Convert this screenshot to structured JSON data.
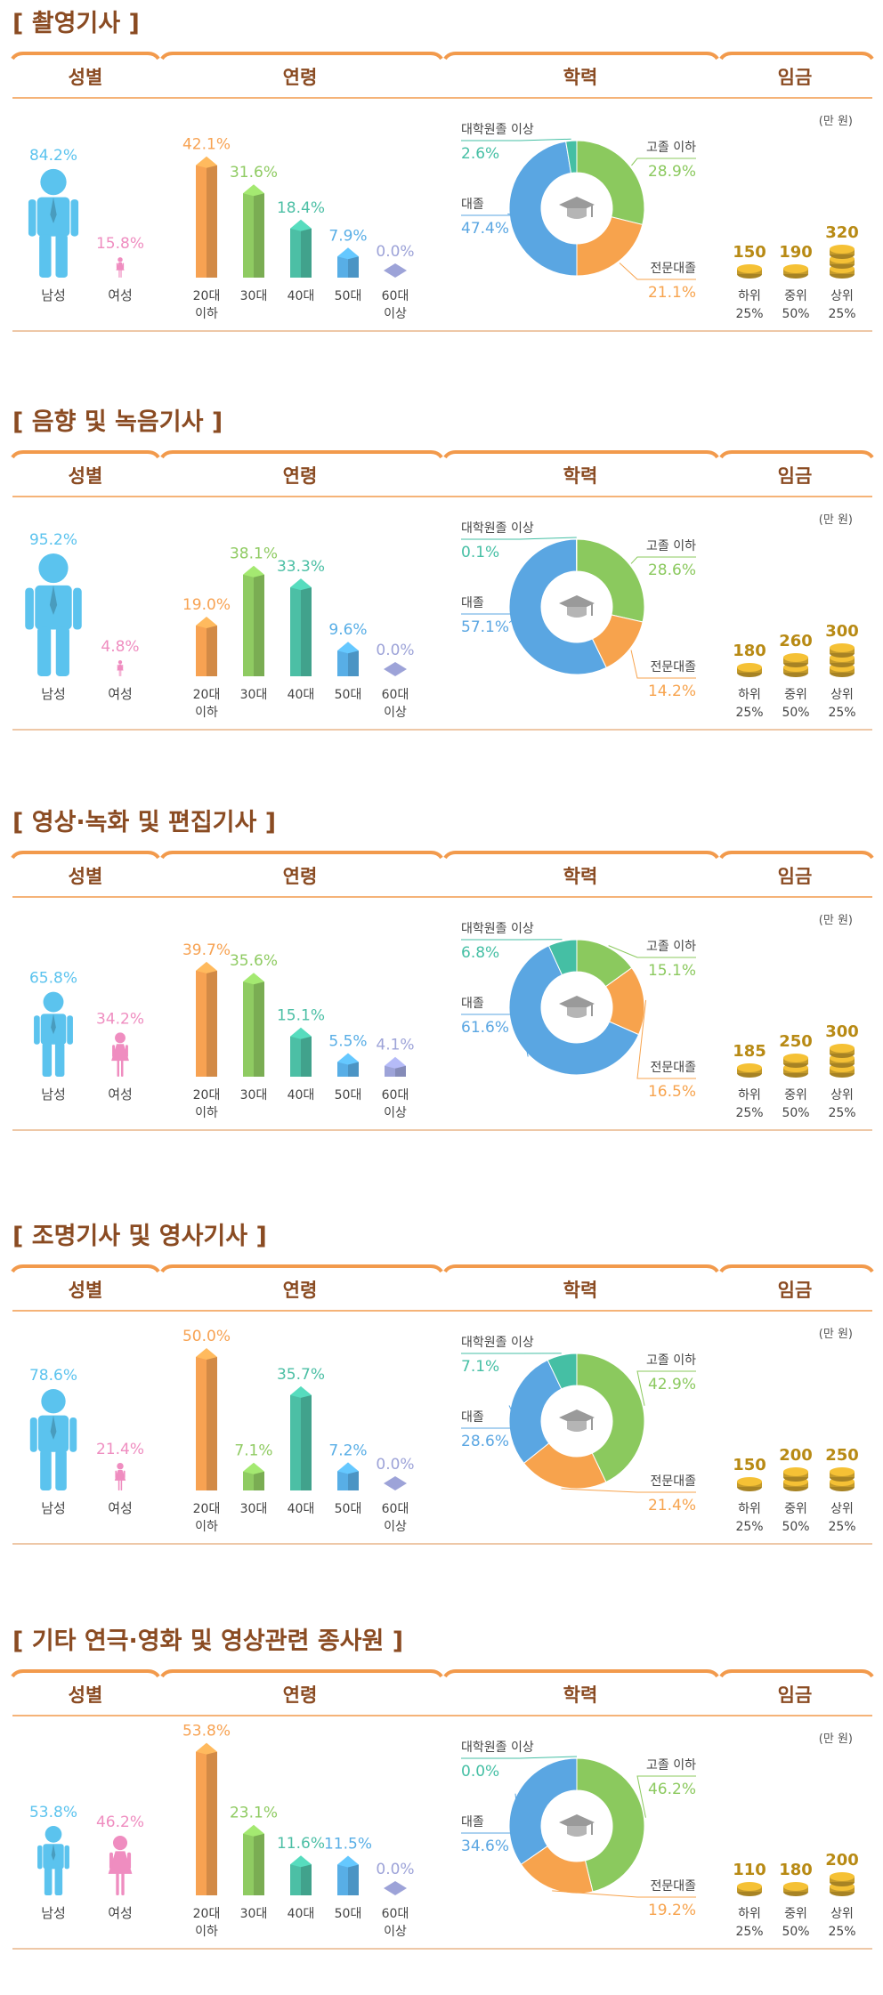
{
  "headers": {
    "gender": "성별",
    "age": "연령",
    "education": "학력",
    "wage": "임금"
  },
  "wage_unit": "(만 원)",
  "gender_labels": [
    "남성",
    "여성"
  ],
  "age_labels": [
    "20대 이하",
    "30대",
    "40대",
    "50대",
    "60대 이상"
  ],
  "wage_labels": [
    "하위 25%",
    "중위 50%",
    "상위 25%"
  ],
  "colors": {
    "title": "#8a4b22",
    "header": "#8a4b22",
    "rule": "#f29a4c",
    "male": "#5bc3ee",
    "female": "#ef8dc0",
    "age": [
      "#f7a252",
      "#8fcb62",
      "#4cbfa5",
      "#58aee6",
      "#9da3d8"
    ],
    "edu": {
      "highschool": "#8bc95e",
      "college": "#f7a34d",
      "university": "#5aa6e2",
      "graduate": "#45bfa4"
    },
    "coin": "#c49a2a",
    "value_wage": "#b88a14"
  },
  "chart_data": [
    {
      "type": "bar",
      "title": "[ 촬영기사 ]",
      "gender": {
        "male": 84.2,
        "female": 15.8,
        "male_label": "84.2%",
        "female_label": "15.8%"
      },
      "age": {
        "values": [
          42.1,
          31.6,
          18.4,
          7.9,
          0.0
        ],
        "labels": [
          "42.1%",
          "31.6%",
          "18.4%",
          "7.9%",
          "0.0%"
        ]
      },
      "education": [
        {
          "name": "고졸 이하",
          "value": 28.9,
          "label": "28.9%",
          "key": "highschool"
        },
        {
          "name": "전문대졸",
          "value": 21.1,
          "label": "21.1%",
          "key": "college"
        },
        {
          "name": "대졸",
          "value": 47.4,
          "label": "47.4%",
          "key": "university"
        },
        {
          "name": "대학원졸 이상",
          "value": 2.6,
          "label": "2.6%",
          "key": "graduate"
        }
      ],
      "wage": {
        "values": [
          150,
          190,
          320
        ],
        "labels": [
          "150",
          "190",
          "320"
        ],
        "stacks": [
          1,
          1,
          3
        ]
      }
    },
    {
      "type": "bar",
      "title": "[ 음향 및 녹음기사 ]",
      "gender": {
        "male": 95.2,
        "female": 4.8,
        "male_label": "95.2%",
        "female_label": "4.8%"
      },
      "age": {
        "values": [
          19.0,
          38.1,
          33.3,
          9.6,
          0.0
        ],
        "labels": [
          "19.0%",
          "38.1%",
          "33.3%",
          "9.6%",
          "0.0%"
        ]
      },
      "education": [
        {
          "name": "고졸 이하",
          "value": 28.6,
          "label": "28.6%",
          "key": "highschool"
        },
        {
          "name": "전문대졸",
          "value": 14.2,
          "label": "14.2%",
          "key": "college"
        },
        {
          "name": "대졸",
          "value": 57.1,
          "label": "57.1%",
          "key": "university"
        },
        {
          "name": "대학원졸 이상",
          "value": 0.1,
          "label": "0.1%",
          "key": "graduate"
        }
      ],
      "wage": {
        "values": [
          180,
          260,
          300
        ],
        "labels": [
          "180",
          "260",
          "300"
        ],
        "stacks": [
          1,
          2,
          3
        ]
      }
    },
    {
      "type": "bar",
      "title": "[ 영상·녹화 및 편집기사 ]",
      "gender": {
        "male": 65.8,
        "female": 34.2,
        "male_label": "65.8%",
        "female_label": "34.2%"
      },
      "age": {
        "values": [
          39.7,
          35.6,
          15.1,
          5.5,
          4.1
        ],
        "labels": [
          "39.7%",
          "35.6%",
          "15.1%",
          "5.5%",
          "4.1%"
        ]
      },
      "education": [
        {
          "name": "고졸 이하",
          "value": 15.1,
          "label": "15.1%",
          "key": "highschool"
        },
        {
          "name": "전문대졸",
          "value": 16.5,
          "label": "16.5%",
          "key": "college"
        },
        {
          "name": "대졸",
          "value": 61.6,
          "label": "61.6%",
          "key": "university"
        },
        {
          "name": "대학원졸 이상",
          "value": 6.8,
          "label": "6.8%",
          "key": "graduate"
        }
      ],
      "wage": {
        "values": [
          185,
          250,
          300
        ],
        "labels": [
          "185",
          "250",
          "300"
        ],
        "stacks": [
          1,
          2,
          3
        ]
      }
    },
    {
      "type": "bar",
      "title": "[ 조명기사 및 영사기사 ]",
      "gender": {
        "male": 78.6,
        "female": 21.4,
        "male_label": "78.6%",
        "female_label": "21.4%"
      },
      "age": {
        "values": [
          50.0,
          7.1,
          35.7,
          7.2,
          0.0
        ],
        "labels": [
          "50.0%",
          "7.1%",
          "35.7%",
          "7.2%",
          "0.0%"
        ]
      },
      "education": [
        {
          "name": "고졸 이하",
          "value": 42.9,
          "label": "42.9%",
          "key": "highschool"
        },
        {
          "name": "전문대졸",
          "value": 21.4,
          "label": "21.4%",
          "key": "college"
        },
        {
          "name": "대졸",
          "value": 28.6,
          "label": "28.6%",
          "key": "university"
        },
        {
          "name": "대학원졸 이상",
          "value": 7.1,
          "label": "7.1%",
          "key": "graduate"
        }
      ],
      "wage": {
        "values": [
          150,
          200,
          250
        ],
        "labels": [
          "150",
          "200",
          "250"
        ],
        "stacks": [
          1,
          2,
          2
        ]
      }
    },
    {
      "type": "bar",
      "title": "[ 기타 연극·영화 및 영상관련 종사원 ]",
      "gender": {
        "male": 53.8,
        "female": 46.2,
        "male_label": "53.8%",
        "female_label": "46.2%"
      },
      "age": {
        "values": [
          53.8,
          23.1,
          11.6,
          11.5,
          0.0
        ],
        "labels": [
          "53.8%",
          "23.1%",
          "11.6%",
          "11.5%",
          "0.0%"
        ]
      },
      "education": [
        {
          "name": "고졸 이하",
          "value": 46.2,
          "label": "46.2%",
          "key": "highschool"
        },
        {
          "name": "전문대졸",
          "value": 19.2,
          "label": "19.2%",
          "key": "college"
        },
        {
          "name": "대졸",
          "value": 34.6,
          "label": "34.6%",
          "key": "university"
        },
        {
          "name": "대학원졸 이상",
          "value": 0.0,
          "label": "0.0%",
          "key": "graduate"
        }
      ],
      "wage": {
        "values": [
          110,
          180,
          200
        ],
        "labels": [
          "110",
          "180",
          "200"
        ],
        "stacks": [
          1,
          1,
          2
        ]
      }
    }
  ]
}
